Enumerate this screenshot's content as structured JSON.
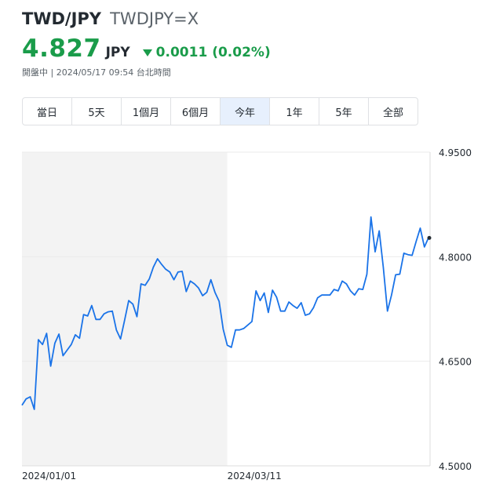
{
  "header": {
    "pair": "TWD/JPY",
    "ticker": "TWDJPY=X",
    "price": "4.827",
    "currency": "JPY",
    "change": "0.0011 (0.02%)",
    "change_direction": "down",
    "status": "開盤中 | 2024/05/17 09:54 台北時間"
  },
  "range_tabs": [
    "當日",
    "5天",
    "1個月",
    "6個月",
    "今年",
    "1年",
    "5年",
    "全部"
  ],
  "active_tab": "今年",
  "colors": {
    "up_green": "#1a9c4a",
    "line_blue": "#1a73e8",
    "active_tab_bg": "#e7f0fd",
    "shaded_region": "#f3f3f3"
  },
  "chart_data": {
    "type": "line",
    "x_tick_labels": [
      "2024/01/01",
      "2024/03/11"
    ],
    "y_tick_labels": [
      "4.9500",
      "4.8000",
      "4.6500",
      "4.5000"
    ],
    "ylim": [
      4.5,
      4.95
    ],
    "grid": true,
    "shaded_period": [
      "2024/01/01",
      "2024/03/11"
    ],
    "series": [
      {
        "values": [
          4.587,
          4.596,
          4.599,
          4.581,
          4.681,
          4.674,
          4.69,
          4.643,
          4.676,
          4.689,
          4.658,
          4.666,
          4.674,
          4.688,
          4.683,
          4.717,
          4.715,
          4.73,
          4.71,
          4.71,
          4.718,
          4.721,
          4.722,
          4.695,
          4.682,
          4.709,
          4.737,
          4.732,
          4.714,
          4.761,
          4.759,
          4.768,
          4.785,
          4.797,
          4.789,
          4.782,
          4.778,
          4.767,
          4.778,
          4.779,
          4.75,
          4.765,
          4.761,
          4.755,
          4.744,
          4.749,
          4.767,
          4.749,
          4.736,
          4.696,
          4.673,
          4.67,
          4.695,
          4.695,
          4.697,
          4.702,
          4.707,
          4.751,
          4.737,
          4.748,
          4.72,
          4.752,
          4.742,
          4.722,
          4.722,
          4.735,
          4.73,
          4.726,
          4.734,
          4.716,
          4.718,
          4.727,
          4.741,
          4.745,
          4.745,
          4.745,
          4.753,
          4.751,
          4.765,
          4.761,
          4.751,
          4.745,
          4.754,
          4.753,
          4.775,
          4.857,
          4.807,
          4.837,
          4.785,
          4.722,
          4.745,
          4.774,
          4.775,
          4.805,
          4.803,
          4.802,
          4.822,
          4.841,
          4.814,
          4.827
        ]
      }
    ],
    "last_value": 4.827
  }
}
